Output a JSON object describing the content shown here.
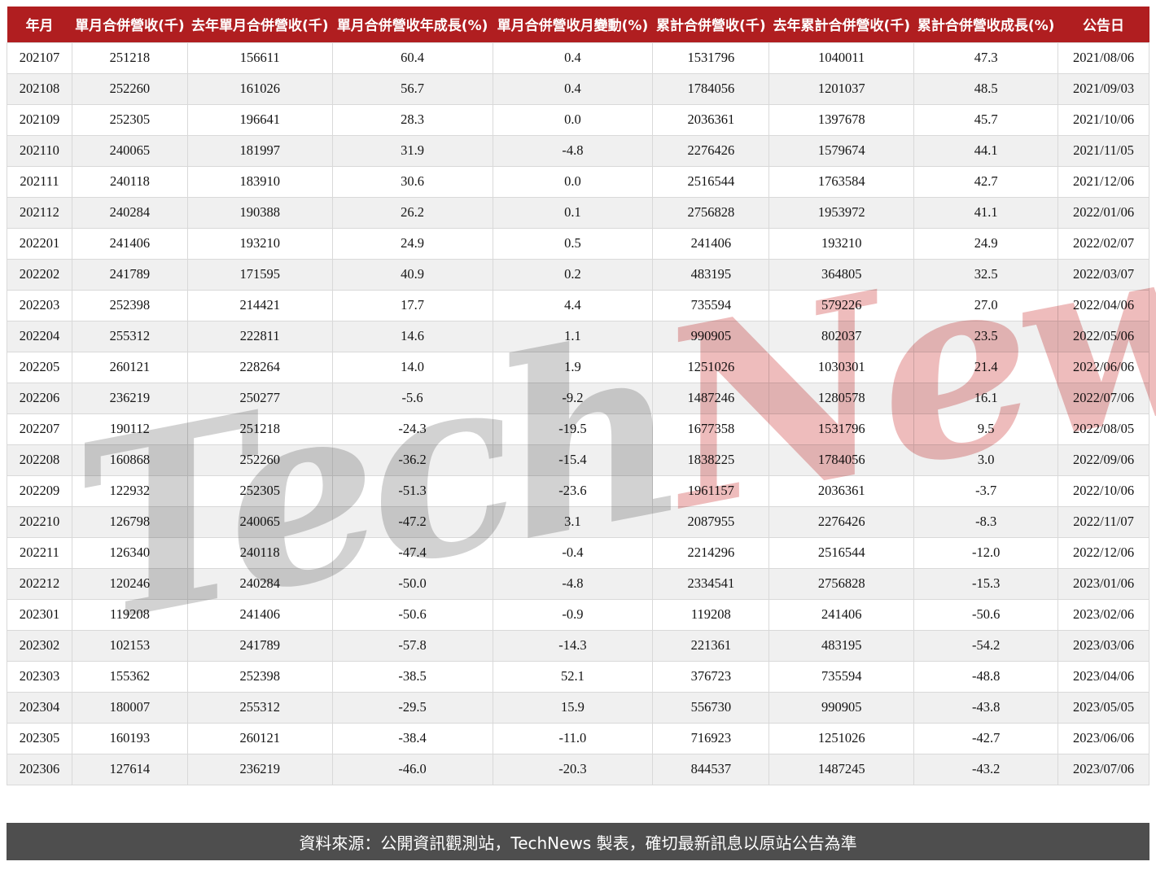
{
  "chart_data": {
    "type": "table",
    "title": "",
    "columns": [
      "年月",
      "單月合併營收(千)",
      "去年單月合併營收(千)",
      "單月合併營收年成長(%)",
      "單月合併營收月變動(%)",
      "累計合併營收(千)",
      "去年累計合併營收(千)",
      "累計合併營收成長(%)",
      "公告日"
    ],
    "rows": [
      [
        "202107",
        "251218",
        "156611",
        "60.4",
        "0.4",
        "1531796",
        "1040011",
        "47.3",
        "2021/08/06"
      ],
      [
        "202108",
        "252260",
        "161026",
        "56.7",
        "0.4",
        "1784056",
        "1201037",
        "48.5",
        "2021/09/03"
      ],
      [
        "202109",
        "252305",
        "196641",
        "28.3",
        "0.0",
        "2036361",
        "1397678",
        "45.7",
        "2021/10/06"
      ],
      [
        "202110",
        "240065",
        "181997",
        "31.9",
        "-4.8",
        "2276426",
        "1579674",
        "44.1",
        "2021/11/05"
      ],
      [
        "202111",
        "240118",
        "183910",
        "30.6",
        "0.0",
        "2516544",
        "1763584",
        "42.7",
        "2021/12/06"
      ],
      [
        "202112",
        "240284",
        "190388",
        "26.2",
        "0.1",
        "2756828",
        "1953972",
        "41.1",
        "2022/01/06"
      ],
      [
        "202201",
        "241406",
        "193210",
        "24.9",
        "0.5",
        "241406",
        "193210",
        "24.9",
        "2022/02/07"
      ],
      [
        "202202",
        "241789",
        "171595",
        "40.9",
        "0.2",
        "483195",
        "364805",
        "32.5",
        "2022/03/07"
      ],
      [
        "202203",
        "252398",
        "214421",
        "17.7",
        "4.4",
        "735594",
        "579226",
        "27.0",
        "2022/04/06"
      ],
      [
        "202204",
        "255312",
        "222811",
        "14.6",
        "1.1",
        "990905",
        "802037",
        "23.5",
        "2022/05/06"
      ],
      [
        "202205",
        "260121",
        "228264",
        "14.0",
        "1.9",
        "1251026",
        "1030301",
        "21.4",
        "2022/06/06"
      ],
      [
        "202206",
        "236219",
        "250277",
        "-5.6",
        "-9.2",
        "1487246",
        "1280578",
        "16.1",
        "2022/07/06"
      ],
      [
        "202207",
        "190112",
        "251218",
        "-24.3",
        "-19.5",
        "1677358",
        "1531796",
        "9.5",
        "2022/08/05"
      ],
      [
        "202208",
        "160868",
        "252260",
        "-36.2",
        "-15.4",
        "1838225",
        "1784056",
        "3.0",
        "2022/09/06"
      ],
      [
        "202209",
        "122932",
        "252305",
        "-51.3",
        "-23.6",
        "1961157",
        "2036361",
        "-3.7",
        "2022/10/06"
      ],
      [
        "202210",
        "126798",
        "240065",
        "-47.2",
        "3.1",
        "2087955",
        "2276426",
        "-8.3",
        "2022/11/07"
      ],
      [
        "202211",
        "126340",
        "240118",
        "-47.4",
        "-0.4",
        "2214296",
        "2516544",
        "-12.0",
        "2022/12/06"
      ],
      [
        "202212",
        "120246",
        "240284",
        "-50.0",
        "-4.8",
        "2334541",
        "2756828",
        "-15.3",
        "2023/01/06"
      ],
      [
        "202301",
        "119208",
        "241406",
        "-50.6",
        "-0.9",
        "119208",
        "241406",
        "-50.6",
        "2023/02/06"
      ],
      [
        "202302",
        "102153",
        "241789",
        "-57.8",
        "-14.3",
        "221361",
        "483195",
        "-54.2",
        "2023/03/06"
      ],
      [
        "202303",
        "155362",
        "252398",
        "-38.5",
        "52.1",
        "376723",
        "735594",
        "-48.8",
        "2023/04/06"
      ],
      [
        "202304",
        "180007",
        "255312",
        "-29.5",
        "15.9",
        "556730",
        "990905",
        "-43.8",
        "2023/05/05"
      ],
      [
        "202305",
        "160193",
        "260121",
        "-38.4",
        "-11.0",
        "716923",
        "1251026",
        "-42.7",
        "2023/06/06"
      ],
      [
        "202306",
        "127614",
        "236219",
        "-46.0",
        "-20.3",
        "844537",
        "1487245",
        "-43.2",
        "2023/07/06"
      ]
    ]
  },
  "watermark": {
    "first": "Tech",
    "second": "News"
  },
  "footer": {
    "text": "資料來源：公開資訊觀測站，TechNews 製表，確切最新訊息以原站公告為準"
  },
  "colors": {
    "header_bg": "#b01e20",
    "row_alt_bg": "#f0f0f0",
    "border": "#d9d9d9",
    "footer_bg": "#4e4e4e",
    "watermark_gray": "#d2d2d2",
    "watermark_pink": "#eebcbc"
  }
}
